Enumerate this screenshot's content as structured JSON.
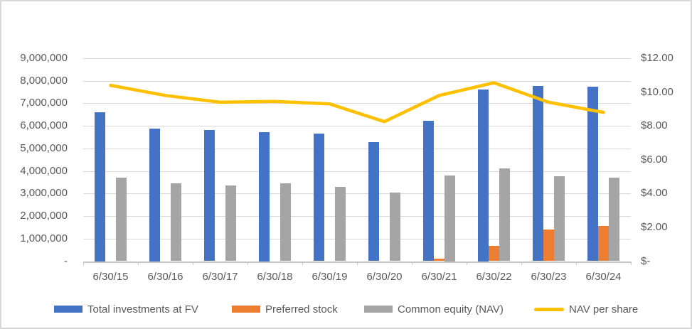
{
  "chart_data": {
    "type": "bar",
    "subtype": "clustered-bar-with-secondary-axis-line",
    "title": "",
    "categories": [
      "6/30/15",
      "6/30/16",
      "6/30/17",
      "6/30/18",
      "6/30/19",
      "6/30/20",
      "6/30/21",
      "6/30/22",
      "6/30/23",
      "6/30/24"
    ],
    "series": [
      {
        "name": "Total investments at FV",
        "type": "bar",
        "axis": "left",
        "color": "#4472C4",
        "values": [
          6620000,
          5880000,
          5820000,
          5720000,
          5670000,
          5270000,
          6220000,
          7630000,
          7760000,
          7750000
        ]
      },
      {
        "name": "Preferred stock",
        "type": "bar",
        "axis": "left",
        "color": "#ED7D31",
        "values": [
          0,
          0,
          0,
          0,
          0,
          0,
          120000,
          680000,
          1400000,
          1570000
        ]
      },
      {
        "name": "Common equity (NAV)",
        "type": "bar",
        "axis": "left",
        "color": "#A5A5A5",
        "values": [
          3700000,
          3460000,
          3360000,
          3440000,
          3300000,
          3050000,
          3800000,
          4120000,
          3770000,
          3690000
        ]
      },
      {
        "name": "NAV per share",
        "type": "line",
        "axis": "right",
        "color": "#FFC000",
        "values": [
          10.4,
          9.8,
          9.4,
          9.45,
          9.3,
          8.25,
          9.8,
          10.55,
          9.4,
          8.8
        ]
      }
    ],
    "left_axis": {
      "min": 0,
      "max": 9000000,
      "ticks": [
        {
          "value": 9000000,
          "label": "9,000,000"
        },
        {
          "value": 8000000,
          "label": "8,000,000"
        },
        {
          "value": 7000000,
          "label": "7,000,000"
        },
        {
          "value": 6000000,
          "label": "6,000,000"
        },
        {
          "value": 5000000,
          "label": "5,000,000"
        },
        {
          "value": 4000000,
          "label": "4,000,000"
        },
        {
          "value": 3000000,
          "label": "3,000,000"
        },
        {
          "value": 2000000,
          "label": "2,000,000"
        },
        {
          "value": 1000000,
          "label": "1,000,000"
        },
        {
          "value": 0,
          "label": "-"
        }
      ]
    },
    "right_axis": {
      "min": 0,
      "max": 12,
      "ticks": [
        {
          "value": 12,
          "label": "$12.00"
        },
        {
          "value": 10,
          "label": "$10.00"
        },
        {
          "value": 8,
          "label": "$8.00"
        },
        {
          "value": 6,
          "label": "$6.00"
        },
        {
          "value": 4,
          "label": "$4.00"
        },
        {
          "value": 2,
          "label": "$2.00"
        },
        {
          "value": 0,
          "label": "$-"
        }
      ]
    },
    "gridlines": "horizontal",
    "legend_position": "bottom"
  },
  "styles": {
    "text_color": "#595959",
    "gridline_color": "#d9d9d9",
    "axis_line_color": "#c6c6c6",
    "background_color": "#ffffff",
    "border_color": "#d9d9d9"
  }
}
